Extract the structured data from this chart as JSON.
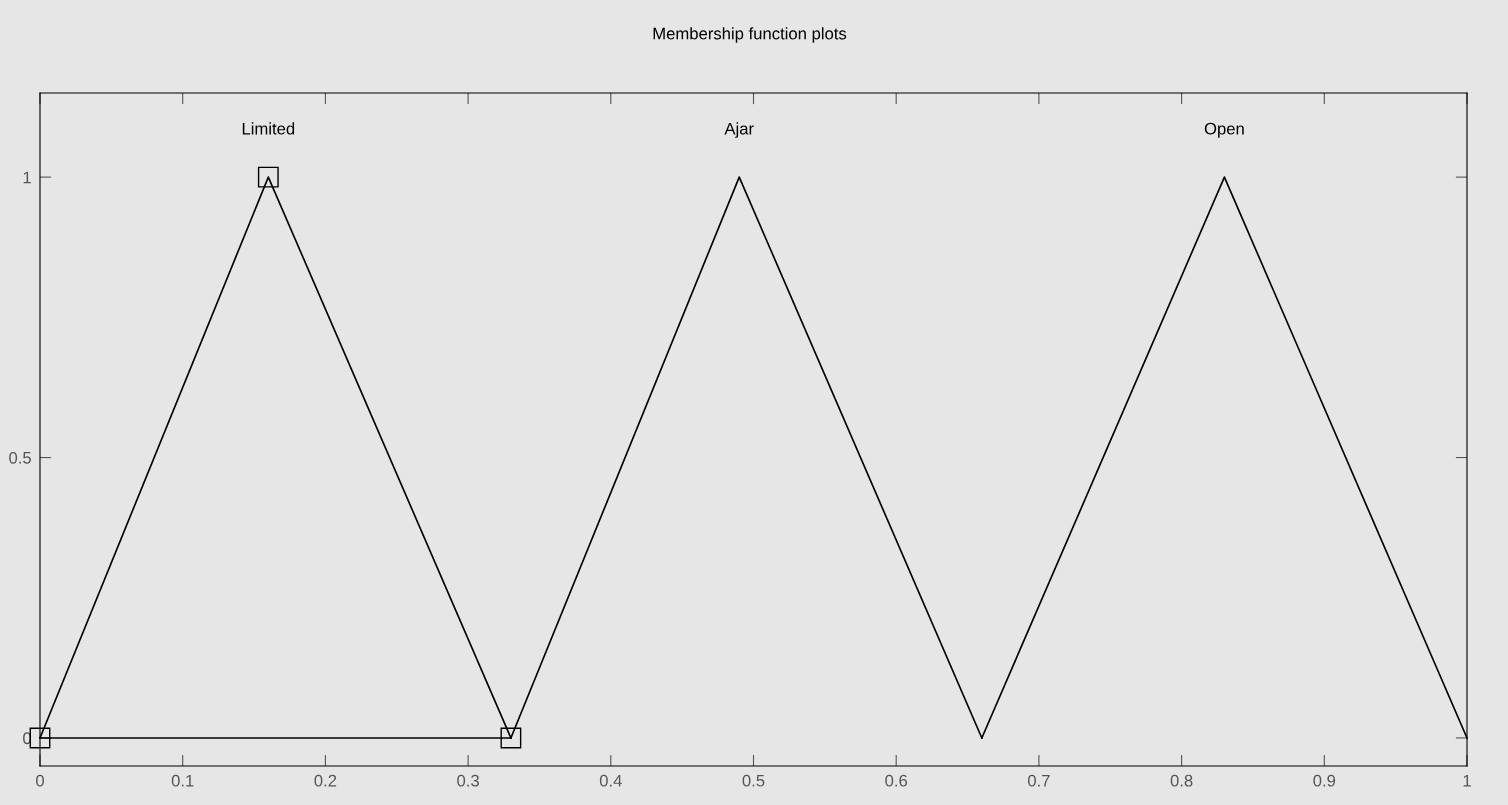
{
  "chart_data": {
    "type": "line",
    "title": "Membership function plots",
    "legend": false,
    "grid": false,
    "xlim": [
      0,
      1
    ],
    "ylim": [
      -0.05,
      1.15
    ],
    "xticks": [
      0,
      0.1,
      0.2,
      0.3,
      0.4,
      0.5,
      0.6,
      0.7,
      0.8,
      0.9,
      1
    ],
    "yticks": [
      0,
      {
        "value": 0.5,
        "label": "0.5"
      },
      1
    ],
    "series": [
      {
        "name": "Limited",
        "color": "#000000",
        "x": [
          0,
          0.16,
          0.33
        ],
        "values": [
          0,
          1,
          0
        ],
        "marker": "square"
      },
      {
        "color": "#000000",
        "x": [
          0,
          0.33
        ],
        "values": [
          0,
          0
        ],
        "marker": "none"
      },
      {
        "name": "Ajar",
        "color": "#000000",
        "x": [
          0.33,
          0.49,
          0.66
        ],
        "values": [
          0,
          1,
          0
        ],
        "marker": "none"
      },
      {
        "name": "Open",
        "color": "#000000",
        "x": [
          0.66,
          0.83,
          1
        ],
        "values": [
          0,
          1,
          0
        ],
        "marker": "none"
      }
    ]
  }
}
